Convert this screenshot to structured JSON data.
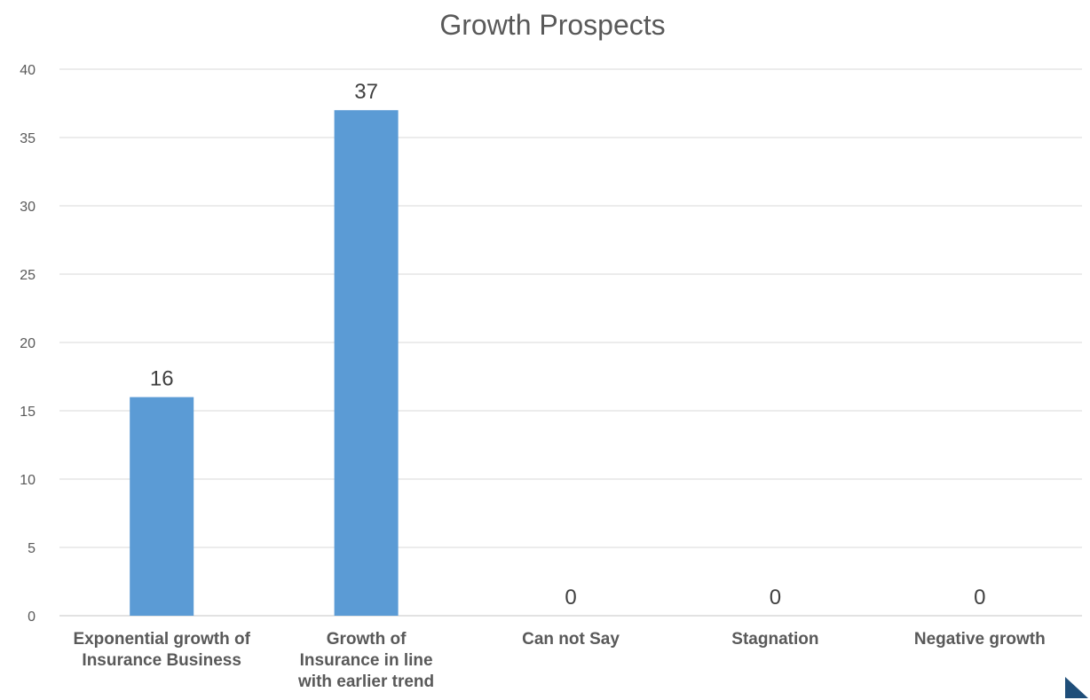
{
  "chart_data": {
    "type": "bar",
    "title": "Growth Prospects",
    "xlabel": "",
    "ylabel": "",
    "categories": [
      "Exponential growth of Insurance Business",
      "Growth of Insurance in line with earlier trend",
      "Can not Say",
      "Stagnation",
      "Negative growth"
    ],
    "values": [
      16,
      37,
      0,
      0,
      0
    ],
    "data_labels": [
      "16",
      "37",
      "0",
      "0",
      "0"
    ],
    "ylim": [
      0,
      40
    ],
    "yticks": [
      "0",
      "5",
      "10",
      "15",
      "20",
      "25",
      "30",
      "35",
      "40"
    ],
    "grid": true,
    "legend": "none",
    "bar_color": "#5B9BD5",
    "grid_color": "#D9D9D9"
  },
  "decor": {
    "corner_color": "#1F4E79"
  }
}
